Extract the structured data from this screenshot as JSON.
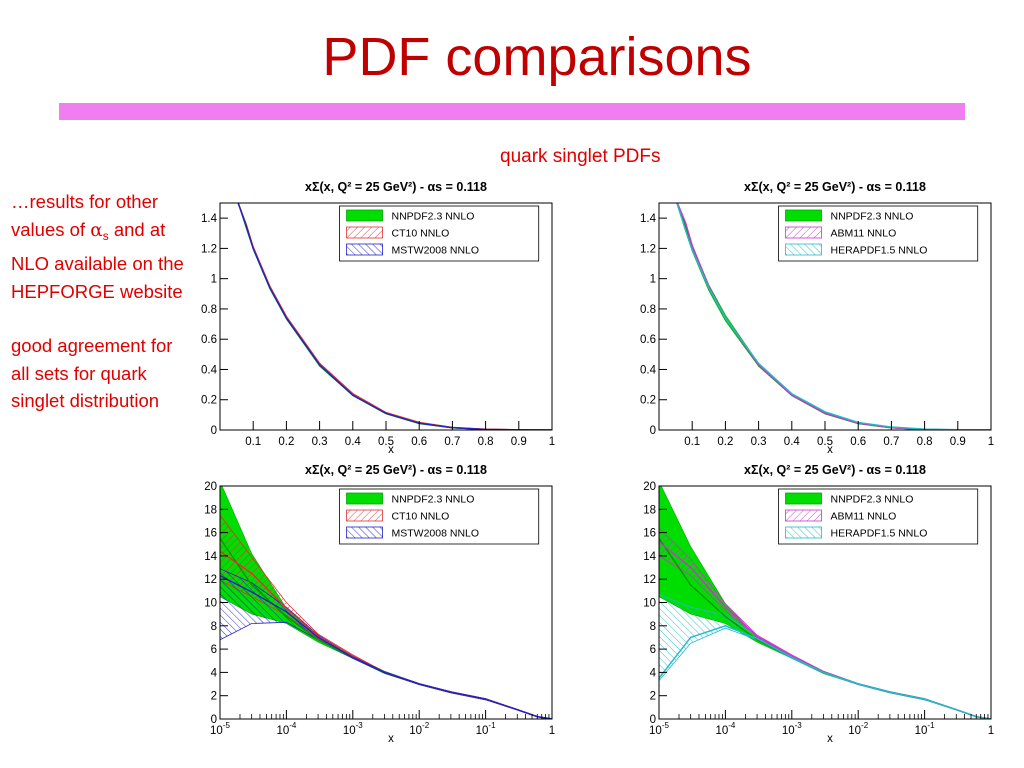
{
  "title": "PDF comparisons",
  "subtitle": "quark singlet PDFs",
  "notes": {
    "p1_part1": "…results for other values of",
    "p1_alpha": "α",
    "p1_sub": "s",
    "p1_part2": "and at NLO available on the HEPFORGE website",
    "p2": "good agreement for all sets for quark singlet distribution"
  },
  "colors": {
    "title": "#c00000",
    "text": "#e00000",
    "bar": "#f07ef0",
    "NNPDF2.3 NNLO": "#00dd00",
    "CT10 NNLO": "#e03030",
    "MSTW2008 NNLO": "#2020cc",
    "ABM11 NNLO": "#cc33cc",
    "HERAPDF1.5 NNLO": "#22bbcc"
  },
  "chart_data": [
    {
      "type": "line",
      "title": "xΣ(x, Q² = 25 GeV²) - αs = 0.118",
      "xlabel": "x",
      "xscale": "linear",
      "xlim": [
        0,
        1
      ],
      "ylim": [
        0,
        1.5
      ],
      "xticks": [
        "0.1",
        "0.2",
        "0.3",
        "0.4",
        "0.5",
        "0.6",
        "0.7",
        "0.8",
        "0.9",
        "1"
      ],
      "yticks": [
        "0",
        "0.2",
        "0.4",
        "0.6",
        "0.8",
        "1",
        "1.2",
        "1.4"
      ],
      "legend": "top-right",
      "series": [
        {
          "name": "NNPDF2.3 NNLO",
          "x": [
            0.05,
            0.08,
            0.1,
            0.15,
            0.2,
            0.3,
            0.4,
            0.5,
            0.6,
            0.7,
            0.8,
            0.9,
            1.0
          ],
          "y": [
            1.55,
            1.34,
            1.2,
            0.94,
            0.74,
            0.43,
            0.23,
            0.11,
            0.045,
            0.015,
            0.004,
            0.001,
            0.0
          ],
          "y_low": [
            1.53,
            1.32,
            1.19,
            0.93,
            0.73,
            0.42,
            0.225,
            0.105,
            0.04,
            0.012,
            0.002,
            0.0,
            0.0
          ],
          "y_high": [
            1.57,
            1.36,
            1.21,
            0.95,
            0.75,
            0.44,
            0.235,
            0.115,
            0.05,
            0.018,
            0.006,
            0.002,
            0.0
          ]
        },
        {
          "name": "CT10 NNLO",
          "x": [
            0.05,
            0.08,
            0.1,
            0.15,
            0.2,
            0.3,
            0.4,
            0.5,
            0.6,
            0.7,
            0.8,
            0.9,
            1.0
          ],
          "y": [
            1.56,
            1.35,
            1.21,
            0.95,
            0.75,
            0.44,
            0.24,
            0.115,
            0.05,
            0.017,
            0.005,
            0.001,
            0.0
          ]
        },
        {
          "name": "MSTW2008 NNLO",
          "x": [
            0.05,
            0.08,
            0.1,
            0.15,
            0.2,
            0.3,
            0.4,
            0.5,
            0.6,
            0.7,
            0.8,
            0.9,
            1.0
          ],
          "y": [
            1.55,
            1.34,
            1.2,
            0.94,
            0.74,
            0.43,
            0.23,
            0.11,
            0.045,
            0.015,
            0.004,
            0.001,
            0.0
          ]
        }
      ]
    },
    {
      "type": "line",
      "title": "xΣ(x, Q² = 25 GeV²) - αs = 0.118",
      "xlabel": "x",
      "xscale": "linear",
      "xlim": [
        0,
        1
      ],
      "ylim": [
        0,
        1.5
      ],
      "xticks": [
        "0.1",
        "0.2",
        "0.3",
        "0.4",
        "0.5",
        "0.6",
        "0.7",
        "0.8",
        "0.9",
        "1"
      ],
      "yticks": [
        "0",
        "0.2",
        "0.4",
        "0.6",
        "0.8",
        "1",
        "1.2",
        "1.4"
      ],
      "legend": "top-right",
      "series": [
        {
          "name": "NNPDF2.3 NNLO",
          "x": [
            0.05,
            0.08,
            0.1,
            0.15,
            0.2,
            0.3,
            0.4,
            0.5,
            0.6,
            0.7,
            0.8,
            0.9,
            1.0
          ],
          "y": [
            1.55,
            1.34,
            1.2,
            0.94,
            0.74,
            0.43,
            0.23,
            0.11,
            0.045,
            0.015,
            0.004,
            0.001,
            0.0
          ],
          "y_low": [
            1.52,
            1.31,
            1.18,
            0.92,
            0.72,
            0.42,
            0.225,
            0.105,
            0.04,
            0.012,
            0.002,
            0.0,
            0.0
          ],
          "y_high": [
            1.59,
            1.37,
            1.22,
            0.96,
            0.76,
            0.44,
            0.235,
            0.115,
            0.05,
            0.018,
            0.006,
            0.002,
            0.0
          ]
        },
        {
          "name": "ABM11 NNLO",
          "x": [
            0.05,
            0.08,
            0.1,
            0.15,
            0.2,
            0.3,
            0.4,
            0.5,
            0.6,
            0.7,
            0.8,
            0.9,
            1.0
          ],
          "y": [
            1.6,
            1.37,
            1.22,
            0.95,
            0.74,
            0.43,
            0.23,
            0.11,
            0.045,
            0.015,
            0.004,
            0.001,
            0.0
          ]
        },
        {
          "name": "HERAPDF1.5 NNLO",
          "x": [
            0.05,
            0.08,
            0.1,
            0.15,
            0.2,
            0.3,
            0.4,
            0.5,
            0.6,
            0.7,
            0.8,
            0.9,
            1.0
          ],
          "y": [
            1.53,
            1.32,
            1.19,
            0.94,
            0.74,
            0.44,
            0.24,
            0.12,
            0.05,
            0.02,
            0.006,
            0.002,
            0.0
          ]
        }
      ]
    },
    {
      "type": "line",
      "title": "xΣ(x, Q² = 25 GeV²) - αs = 0.118",
      "xlabel": "x",
      "xscale": "log",
      "xlim": [
        1e-05,
        1
      ],
      "ylim": [
        0,
        20
      ],
      "xticks": [
        "10^-5",
        "10^-4",
        "10^-3",
        "10^-2",
        "10^-1",
        "1"
      ],
      "yticks": [
        "0",
        "2",
        "4",
        "6",
        "8",
        "10",
        "12",
        "14",
        "16",
        "18",
        "20"
      ],
      "legend": "top-right",
      "series": [
        {
          "name": "NNPDF2.3 NNLO",
          "x": [
            1e-05,
            3e-05,
            0.0001,
            0.0003,
            0.001,
            0.003,
            0.01,
            0.03,
            0.1,
            0.3,
            0.6,
            1.0
          ],
          "y": [
            15.5,
            11.5,
            8.8,
            6.8,
            5.3,
            4.0,
            3.0,
            2.3,
            1.7,
            0.8,
            0.2,
            0.0
          ],
          "y_low": [
            10.5,
            9.0,
            8.2,
            6.6,
            5.2,
            3.9,
            2.95,
            2.25,
            1.65,
            0.78,
            0.18,
            0.0
          ],
          "y_high": [
            20.5,
            14.2,
            9.5,
            7.0,
            5.4,
            4.1,
            3.05,
            2.35,
            1.75,
            0.82,
            0.22,
            0.0
          ]
        },
        {
          "name": "CT10 NNLO",
          "x": [
            1e-05,
            3e-05,
            0.0001,
            0.0003,
            0.001,
            0.003,
            0.01,
            0.03,
            0.1,
            0.3,
            0.6,
            1.0
          ],
          "y": [
            14.4,
            12.5,
            9.5,
            7.1,
            5.4,
            4.0,
            3.0,
            2.3,
            1.7,
            0.8,
            0.2,
            0.0
          ],
          "y_low": [
            11.9,
            10.5,
            8.9,
            6.9,
            5.3,
            3.95,
            2.95,
            2.25,
            1.65,
            0.78,
            0.18,
            0.0
          ],
          "y_high": [
            17.5,
            13.9,
            10.0,
            7.3,
            5.5,
            4.05,
            3.05,
            2.35,
            1.75,
            0.82,
            0.22,
            0.0
          ]
        },
        {
          "name": "MSTW2008 NNLO",
          "x": [
            1e-05,
            3e-05,
            0.0001,
            0.0003,
            0.001,
            0.003,
            0.01,
            0.03,
            0.1,
            0.3,
            0.6,
            1.0
          ],
          "y": [
            12.3,
            10.9,
            9.2,
            7.0,
            5.3,
            4.0,
            3.0,
            2.3,
            1.7,
            0.8,
            0.2,
            0.0
          ],
          "y_low": [
            6.8,
            8.2,
            8.3,
            6.8,
            5.2,
            3.95,
            2.95,
            2.25,
            1.65,
            0.78,
            0.18,
            0.0
          ],
          "y_high": [
            12.9,
            11.7,
            9.6,
            7.2,
            5.4,
            4.05,
            3.05,
            2.35,
            1.75,
            0.82,
            0.22,
            0.0
          ]
        }
      ]
    },
    {
      "type": "line",
      "title": "xΣ(x, Q² = 25 GeV²) - αs = 0.118",
      "xlabel": "x",
      "xscale": "log",
      "xlim": [
        1e-05,
        1
      ],
      "ylim": [
        0,
        20
      ],
      "xticks": [
        "10^-5",
        "10^-4",
        "10^-3",
        "10^-2",
        "10^-1",
        "1"
      ],
      "yticks": [
        "0",
        "2",
        "4",
        "6",
        "8",
        "10",
        "12",
        "14",
        "16",
        "18",
        "20"
      ],
      "legend": "top-right",
      "series": [
        {
          "name": "NNPDF2.3 NNLO",
          "x": [
            1e-05,
            3e-05,
            0.0001,
            0.0003,
            0.001,
            0.003,
            0.01,
            0.03,
            0.1,
            0.3,
            0.6,
            1.0
          ],
          "y": [
            15.5,
            11.5,
            8.8,
            6.8,
            5.3,
            4.0,
            3.0,
            2.3,
            1.7,
            0.8,
            0.2,
            0.0
          ],
          "y_low": [
            10.5,
            9.0,
            8.2,
            6.6,
            5.2,
            3.9,
            2.95,
            2.25,
            1.65,
            0.78,
            0.18,
            0.0
          ],
          "y_high": [
            20.5,
            14.8,
            9.9,
            7.0,
            5.4,
            4.1,
            3.05,
            2.35,
            1.75,
            0.82,
            0.22,
            0.0
          ]
        },
        {
          "name": "ABM11 NNLO",
          "x": [
            1e-05,
            3e-05,
            0.0001,
            0.0003,
            0.001,
            0.003,
            0.01,
            0.03,
            0.1,
            0.3,
            0.6,
            1.0
          ],
          "y": [
            15.2,
            13.0,
            9.6,
            7.1,
            5.4,
            4.05,
            3.0,
            2.3,
            1.7,
            0.8,
            0.2,
            0.0
          ],
          "y_low": [
            14.0,
            12.3,
            9.3,
            7.0,
            5.3,
            4.0,
            2.95,
            2.25,
            1.65,
            0.78,
            0.18,
            0.0
          ],
          "y_high": [
            16.4,
            13.7,
            9.9,
            7.2,
            5.5,
            4.1,
            3.05,
            2.35,
            1.75,
            0.82,
            0.22,
            0.0
          ]
        },
        {
          "name": "HERAPDF1.5 NNLO",
          "x": [
            1e-05,
            3e-05,
            0.0001,
            0.0003,
            0.001,
            0.003,
            0.01,
            0.03,
            0.1,
            0.3,
            0.6,
            1.0
          ],
          "y": [
            3.5,
            7.0,
            8.0,
            6.9,
            5.3,
            4.0,
            3.0,
            2.3,
            1.7,
            0.8,
            0.2,
            0.0
          ],
          "y_low": [
            3.3,
            6.5,
            7.8,
            6.8,
            5.2,
            3.95,
            2.95,
            2.25,
            1.65,
            0.78,
            0.18,
            0.0
          ],
          "y_high": [
            10.7,
            9.6,
            8.9,
            7.1,
            5.4,
            4.05,
            3.05,
            2.35,
            1.75,
            0.82,
            0.22,
            0.0
          ]
        }
      ]
    }
  ]
}
